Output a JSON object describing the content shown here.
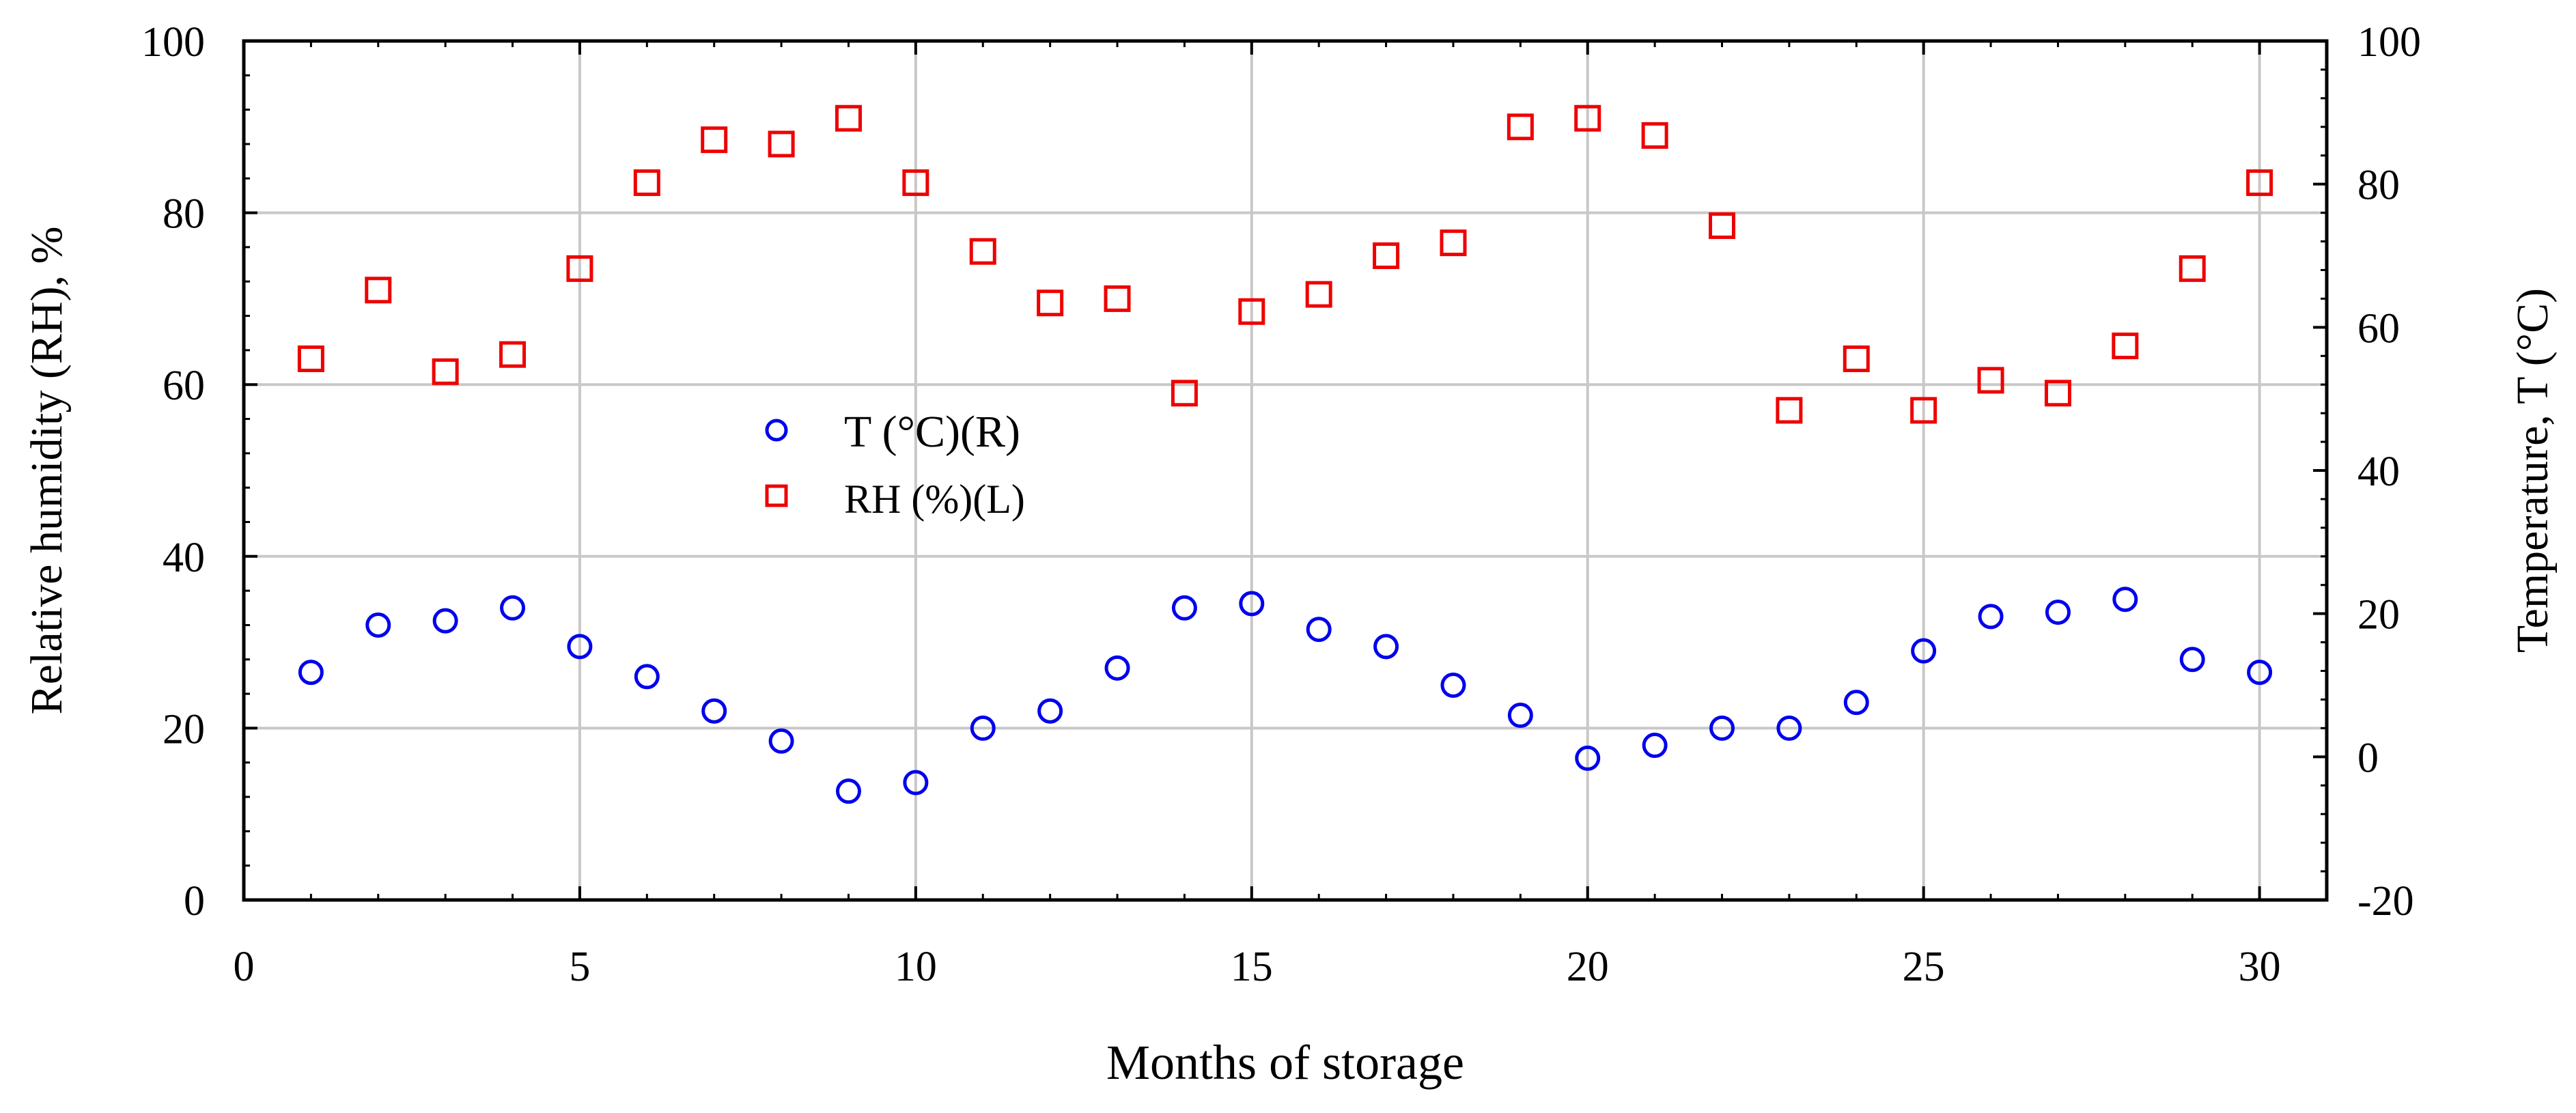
{
  "chart_data": {
    "type": "scatter",
    "xlabel": "Months of storage",
    "ylabel_left": "Relative humidity (RH), %",
    "ylabel_right": "Temperature, T (°C)",
    "xlim": [
      0,
      31
    ],
    "ylim_left": [
      0,
      100
    ],
    "ylim_right": [
      -20,
      100
    ],
    "x_ticks": [
      0,
      5,
      10,
      15,
      20,
      25,
      30
    ],
    "y_left_ticks": [
      0,
      20,
      40,
      60,
      80,
      100
    ],
    "y_right_ticks": [
      -20,
      0,
      20,
      40,
      60,
      80,
      100
    ],
    "grid": true,
    "legend_position": "center-left",
    "x": [
      1,
      2,
      3,
      4,
      5,
      6,
      7,
      8,
      9,
      10,
      11,
      12,
      13,
      14,
      15,
      16,
      17,
      18,
      19,
      20,
      21,
      22,
      23,
      24,
      25,
      26,
      27,
      28,
      29,
      30
    ],
    "series": [
      {
        "name": "T (°C)(R)",
        "axis": "right",
        "marker": "circle",
        "color": "#0000ee",
        "values": [
          11.8,
          18.4,
          19,
          20.8,
          15.4,
          11.2,
          6.4,
          2.2,
          -4.8,
          -3.6,
          4,
          6.4,
          12.4,
          20.8,
          21.4,
          17.8,
          15.4,
          10,
          5.8,
          -0.2,
          1.6,
          4,
          4,
          7.6,
          14.8,
          19.6,
          20.2,
          22,
          13.6,
          11.8
        ]
      },
      {
        "name": "RH (%)(L)",
        "axis": "left",
        "marker": "square",
        "color": "#ee0000",
        "values": [
          63,
          71,
          61.5,
          63.5,
          73.5,
          83.5,
          88.5,
          88,
          91,
          83.5,
          75.5,
          69.5,
          70,
          59,
          68.5,
          70.5,
          75,
          76.5,
          90,
          91,
          89,
          78.5,
          57,
          63,
          57,
          60.5,
          59,
          64.5,
          73.5,
          83.5
        ]
      }
    ]
  }
}
